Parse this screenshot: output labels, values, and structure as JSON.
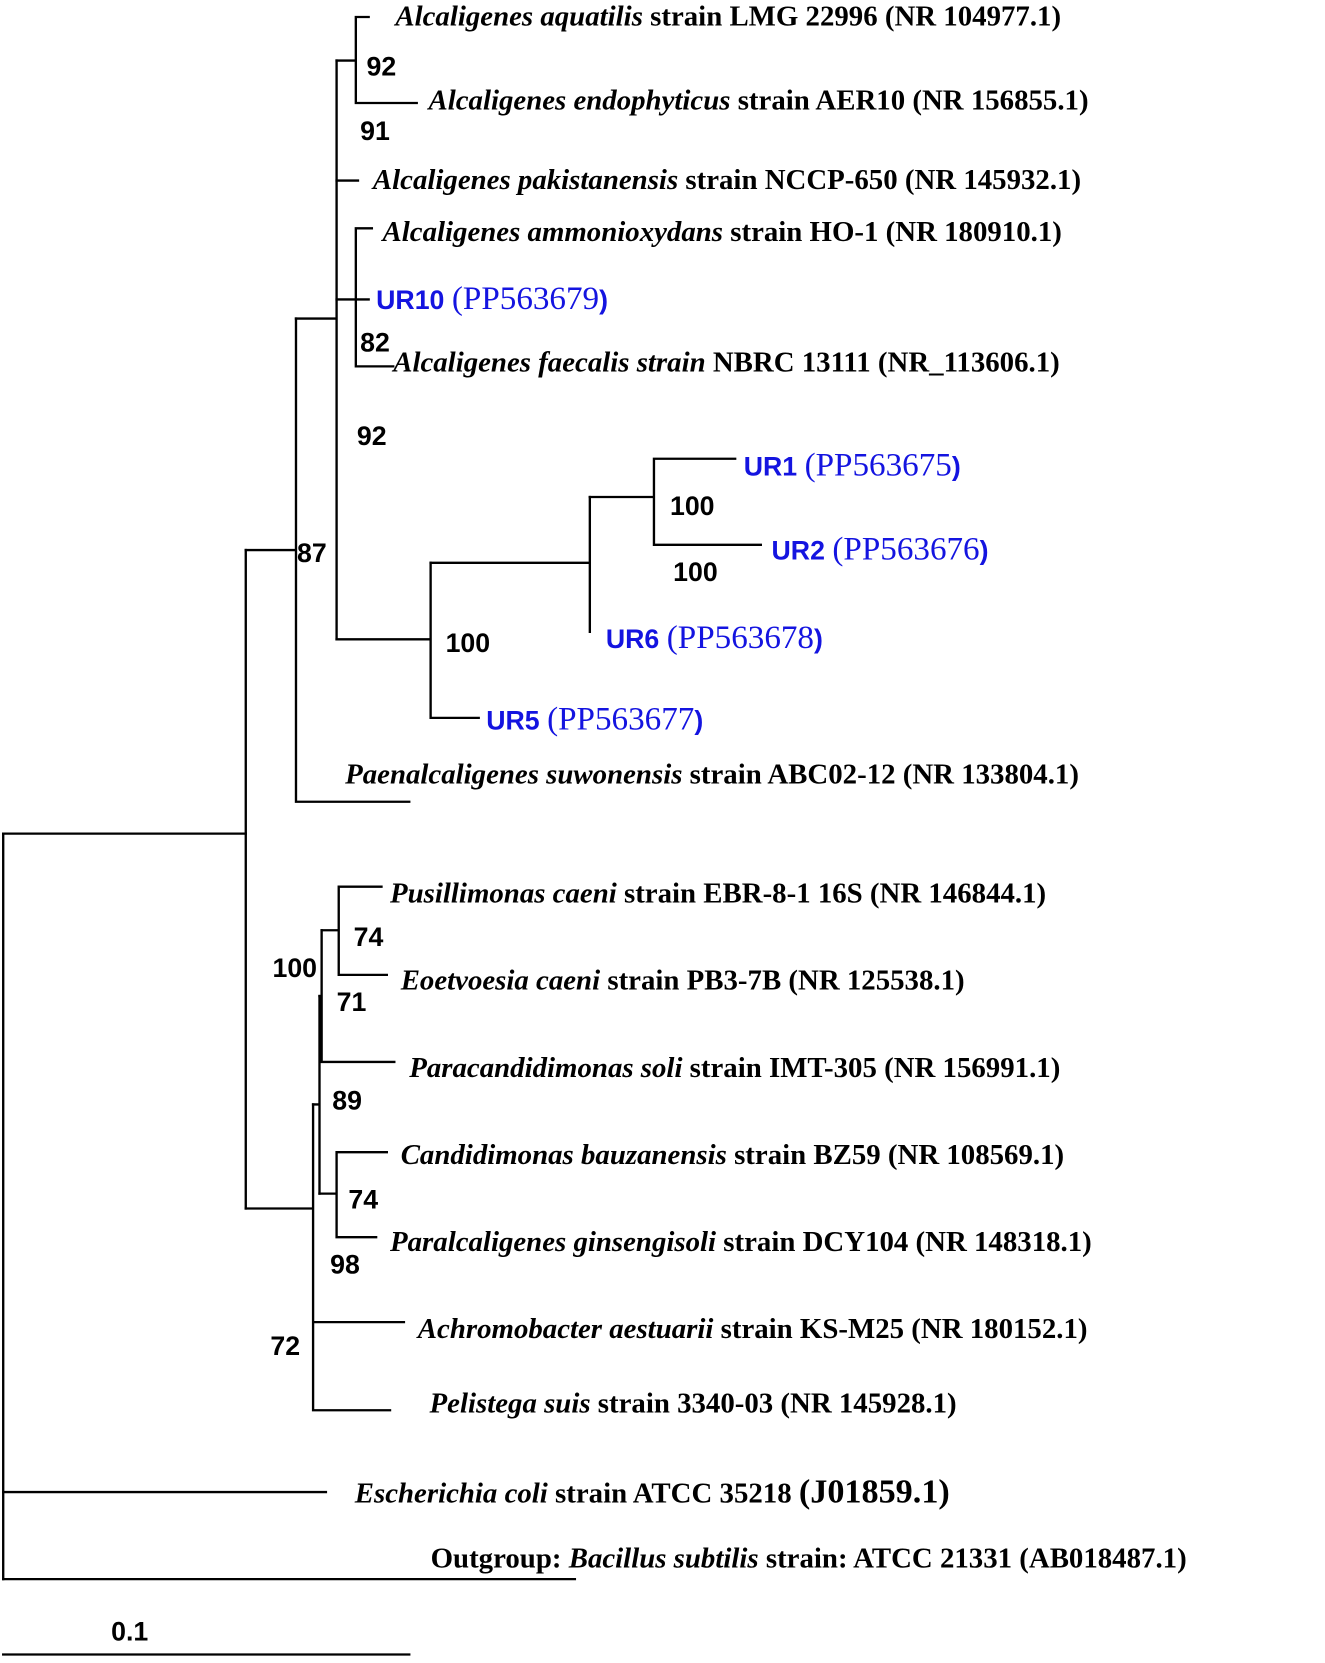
{
  "colors": {
    "branch": "#000000",
    "isolate_label": "#1414e0",
    "text": "#000000"
  },
  "leaves": [
    {
      "genus": "Alcaligenes aquatilis",
      "rest": " strain LMG 22996 (NR 104977.1)"
    },
    {
      "genus": "Alcaligenes endophyticus",
      "rest": " strain AER10 (NR 156855.1)"
    },
    {
      "genus": "Alcaligenes pakistanensis",
      "rest": " strain NCCP-650 (NR 145932.1)"
    },
    {
      "genus": "Alcaligenes ammonioxydans",
      "rest": " strain HO-1 (NR 180910.1)"
    },
    {
      "genus": "Alcaligenes faecalis strain",
      "rest": " NBRC 13111 (NR_113606.1)"
    },
    {
      "genus": "Paenalcaligenes suwonensis",
      "rest": " strain ABC02-12 (NR 133804.1)"
    },
    {
      "genus": "Pusillimonas caeni",
      "rest": " strain EBR-8-1 16S (NR 146844.1)"
    },
    {
      "genus": "Eoetvoesia caeni",
      "rest": " strain PB3-7B (NR 125538.1)"
    },
    {
      "genus": "Paracandidimonas soli",
      "rest": " strain IMT-305 (NR 156991.1)"
    },
    {
      "genus": "Candidimonas bauzanensis",
      "rest": " strain BZ59 (NR 108569.1)"
    },
    {
      "genus": "Paralcaligenes ginsengisoli",
      "rest": " strain DCY104 (NR 148318.1)"
    },
    {
      "genus": "Achromobacter aestuarii",
      "rest": " strain KS-M25 (NR 180152.1)"
    },
    {
      "genus": "Pelistega suis",
      "rest": " strain 3340-03 (NR 145928.1)"
    }
  ],
  "isolates": [
    {
      "id": "UR10",
      "accession": "(PP563679",
      "close": ")"
    },
    {
      "id": "UR1",
      "accession": "(PP563675",
      "close": ")"
    },
    {
      "id": "UR2",
      "accession": "(PP563676",
      "close": ")"
    },
    {
      "id": "UR6",
      "accession": "(PP563678",
      "close": ")"
    },
    {
      "id": "UR5",
      "accession": "(PP563677",
      "close": ")"
    }
  ],
  "ecoli": {
    "genus": "Escherichia coli",
    "rest": "  strain ATCC 35218 ",
    "accession": "(J01859.1)"
  },
  "outgroup": {
    "prefix": "Outgroup: ",
    "genus": "Bacillus subtilis",
    "rest": "  strain: ATCC 21331 (AB018487.1)"
  },
  "bootstrap": [
    "92",
    "91",
    "82",
    "92",
    "100",
    "100",
    "100",
    "87",
    "74",
    "100",
    "71",
    "89",
    "74",
    "98",
    "72"
  ],
  "scale_label": "0.1"
}
